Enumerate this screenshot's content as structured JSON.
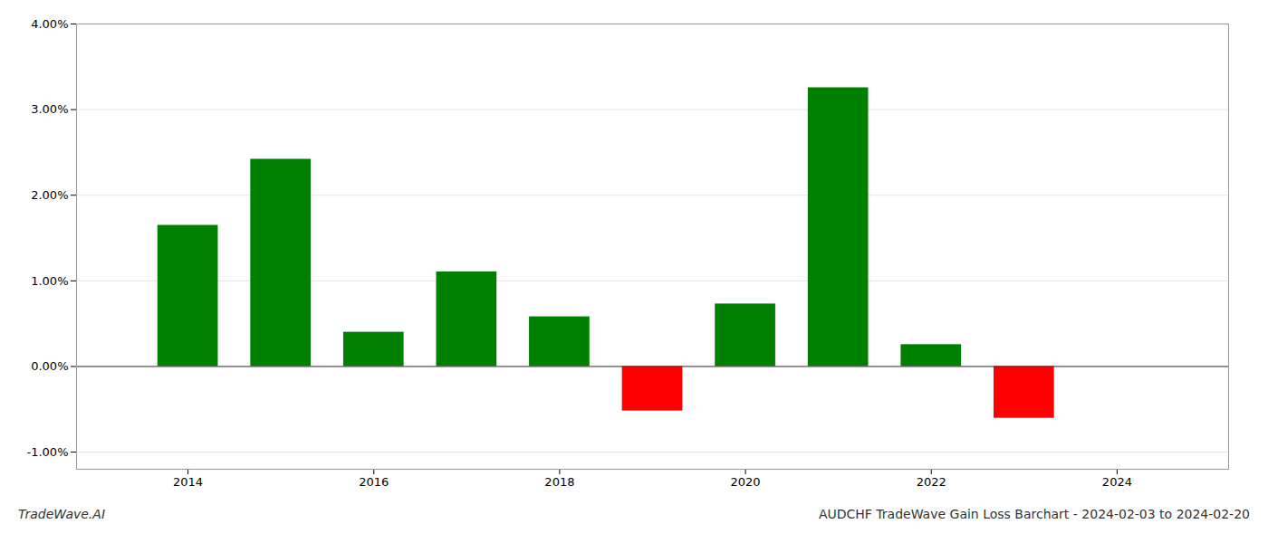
{
  "chart_data": {
    "type": "bar",
    "title": "AUDCHF TradeWave Gain Loss Barchart - 2024-02-03 to 2024-02-20",
    "annotations": [
      "TradeWave.AI"
    ],
    "x": [
      2014,
      2015,
      2016,
      2017,
      2018,
      2019,
      2020,
      2021,
      2022,
      2023
    ],
    "values": [
      0.01648,
      0.0242,
      0.004,
      0.01105,
      0.0058,
      -0.0052,
      0.0073,
      0.03255,
      0.00255,
      -0.00605
    ],
    "colors": [
      "#008000",
      "#008000",
      "#008000",
      "#008000",
      "#008000",
      "#ff0000",
      "#008000",
      "#008000",
      "#008000",
      "#ff0000"
    ],
    "xlim": [
      2012.8,
      2025.2
    ],
    "xticks": [
      2014,
      2016,
      2018,
      2020,
      2022,
      2024
    ],
    "ylim": [
      -0.012,
      0.04
    ],
    "yticks": [
      {
        "value": -0.01,
        "label": "-1.00%"
      },
      {
        "value": 0,
        "label": "0.00%"
      },
      {
        "value": 0.01,
        "label": "1.00%"
      },
      {
        "value": 0.02,
        "label": "2.00%"
      },
      {
        "value": 0.03,
        "label": "3.00%"
      },
      {
        "value": 0.04,
        "label": "4.00%"
      }
    ],
    "grid": true
  }
}
